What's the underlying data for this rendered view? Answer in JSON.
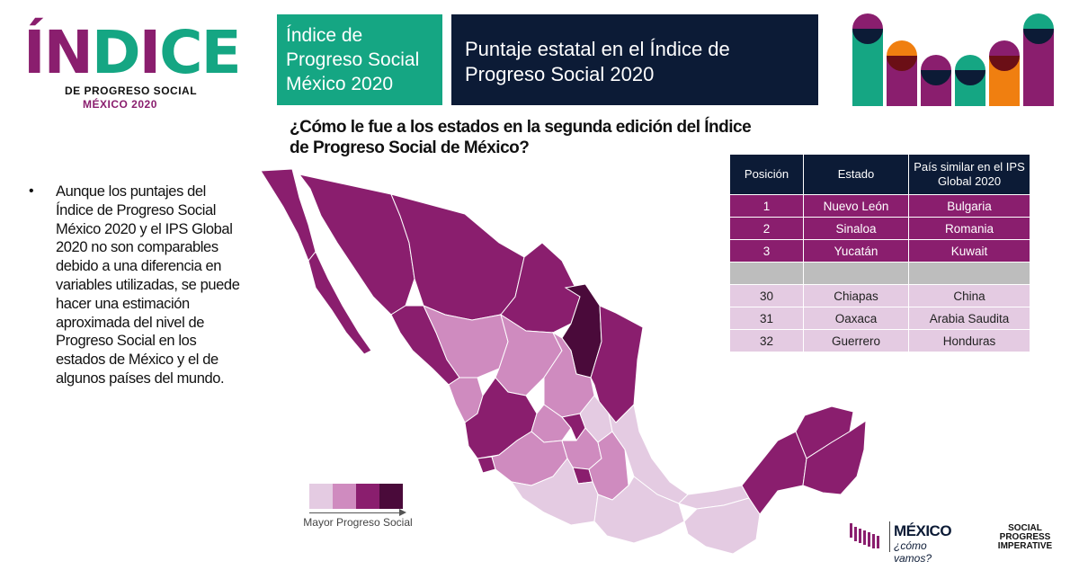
{
  "logo": {
    "word": "ÍNDICE",
    "subtitle": "DE PROGRESO SOCIAL",
    "year": "MÉXICO 2020"
  },
  "header": {
    "green_title": "Índice de Progreso Social México 2020",
    "slide_title": "Puntaje estatal en el Índice de Progreso Social 2020"
  },
  "question": "¿Cómo le fue a los estados en la segunda edición del Índice de Progreso Social de México?",
  "bullet": {
    "marker": "•",
    "text": "Aunque los puntajes del Índice de Progreso Social México 2020 y el IPS Global 2020 no son comparables debido a una diferencia en variables utilizadas, se puede hacer una estimación aproximada del nivel de Progreso Social en los estados de México y el de algunos países del mundo."
  },
  "table": {
    "headers": [
      "Posición",
      "Estado",
      "País similar en el IPS Global 2020"
    ],
    "top_rows": [
      [
        "1",
        "Nuevo León",
        "Bulgaria"
      ],
      [
        "2",
        "Sinaloa",
        "Romania"
      ],
      [
        "3",
        "Yucatán",
        "Kuwait"
      ]
    ],
    "bottom_rows": [
      [
        "30",
        "Chiapas",
        "China"
      ],
      [
        "31",
        "Oaxaca",
        "Arabia Saudita"
      ],
      [
        "32",
        "Guerrero",
        "Honduras"
      ]
    ]
  },
  "legend": {
    "label": "Mayor Progreso Social",
    "colors": [
      "#e4cbe2",
      "#cf8bbf",
      "#8a1e6e",
      "#4a0a3a"
    ]
  },
  "colors": {
    "green": "#15a683",
    "navy": "#0c1b36",
    "purple": "#8a1e6e",
    "dark_purple": "#4a0a3a",
    "mid_pink": "#cf8bbf",
    "light_pink": "#e4cbe2",
    "orange": "#f07f10"
  },
  "footer": {
    "mcv_name": "MÉXICO",
    "mcv_tagline": "¿cómo vamos?",
    "spi_line1": "SOCIAL",
    "spi_line2": "PROGRESS",
    "spi_line3": "IMPERATIVE"
  }
}
